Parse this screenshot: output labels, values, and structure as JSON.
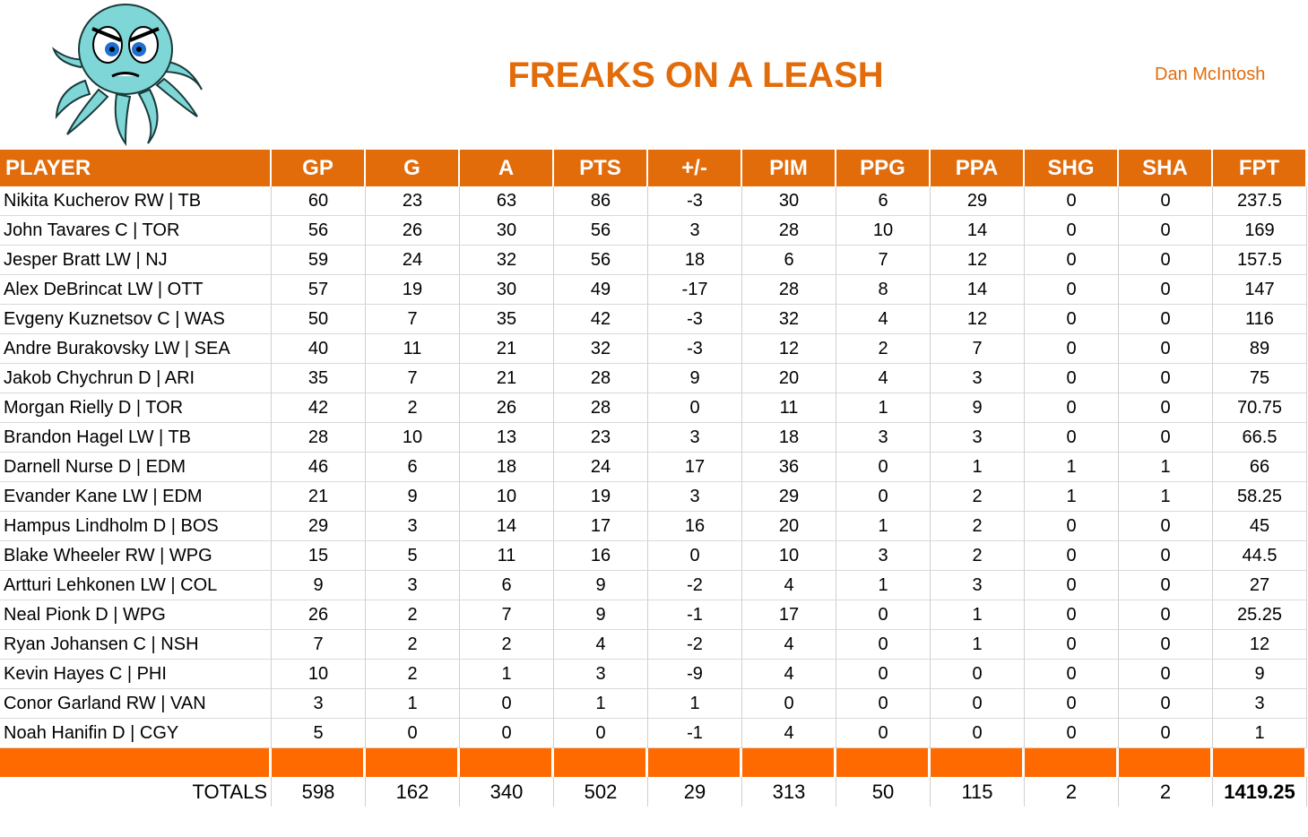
{
  "header": {
    "title": "FREAKS ON A LEASH",
    "owner": "Dan McIntosh"
  },
  "table": {
    "columns": [
      "PLAYER",
      "GP",
      "G",
      "A",
      "PTS",
      "+/-",
      "PIM",
      "PPG",
      "PPA",
      "SHG",
      "SHA",
      "FPT"
    ],
    "rows": [
      [
        "Nikita Kucherov RW | TB",
        60,
        23,
        63,
        86,
        -3,
        30,
        6,
        29,
        0,
        0,
        237.5
      ],
      [
        "John Tavares C | TOR",
        56,
        26,
        30,
        56,
        3,
        28,
        10,
        14,
        0,
        0,
        169
      ],
      [
        "Jesper Bratt LW | NJ",
        59,
        24,
        32,
        56,
        18,
        6,
        7,
        12,
        0,
        0,
        157.5
      ],
      [
        "Alex DeBrincat LW | OTT",
        57,
        19,
        30,
        49,
        -17,
        28,
        8,
        14,
        0,
        0,
        147
      ],
      [
        "Evgeny Kuznetsov C | WAS",
        50,
        7,
        35,
        42,
        -3,
        32,
        4,
        12,
        0,
        0,
        116
      ],
      [
        "Andre Burakovsky LW | SEA",
        40,
        11,
        21,
        32,
        -3,
        12,
        2,
        7,
        0,
        0,
        89
      ],
      [
        "Jakob Chychrun D | ARI",
        35,
        7,
        21,
        28,
        9,
        20,
        4,
        3,
        0,
        0,
        75
      ],
      [
        "Morgan Rielly D | TOR",
        42,
        2,
        26,
        28,
        0,
        11,
        1,
        9,
        0,
        0,
        70.75
      ],
      [
        "Brandon Hagel LW | TB",
        28,
        10,
        13,
        23,
        3,
        18,
        3,
        3,
        0,
        0,
        66.5
      ],
      [
        "Darnell Nurse D | EDM",
        46,
        6,
        18,
        24,
        17,
        36,
        0,
        1,
        1,
        1,
        66
      ],
      [
        "Evander Kane LW | EDM",
        21,
        9,
        10,
        19,
        3,
        29,
        0,
        2,
        1,
        1,
        58.25
      ],
      [
        "Hampus Lindholm D | BOS",
        29,
        3,
        14,
        17,
        16,
        20,
        1,
        2,
        0,
        0,
        45
      ],
      [
        "Blake Wheeler RW | WPG",
        15,
        5,
        11,
        16,
        0,
        10,
        3,
        2,
        0,
        0,
        44.5
      ],
      [
        "Artturi Lehkonen LW | COL",
        9,
        3,
        6,
        9,
        -2,
        4,
        1,
        3,
        0,
        0,
        27
      ],
      [
        "Neal Pionk D | WPG",
        26,
        2,
        7,
        9,
        -1,
        17,
        0,
        1,
        0,
        0,
        25.25
      ],
      [
        "Ryan Johansen C | NSH",
        7,
        2,
        2,
        4,
        -2,
        4,
        0,
        1,
        0,
        0,
        12
      ],
      [
        "Kevin Hayes C | PHI",
        10,
        2,
        1,
        3,
        -9,
        4,
        0,
        0,
        0,
        0,
        9
      ],
      [
        "Conor Garland RW | VAN",
        3,
        1,
        0,
        1,
        1,
        0,
        0,
        0,
        0,
        0,
        3
      ],
      [
        "Noah Hanifin D | CGY",
        5,
        0,
        0,
        0,
        -1,
        4,
        0,
        0,
        0,
        0,
        1
      ]
    ],
    "totals": [
      "TOTALS",
      598,
      162,
      340,
      502,
      29,
      313,
      50,
      115,
      2,
      2,
      1419.25
    ]
  }
}
